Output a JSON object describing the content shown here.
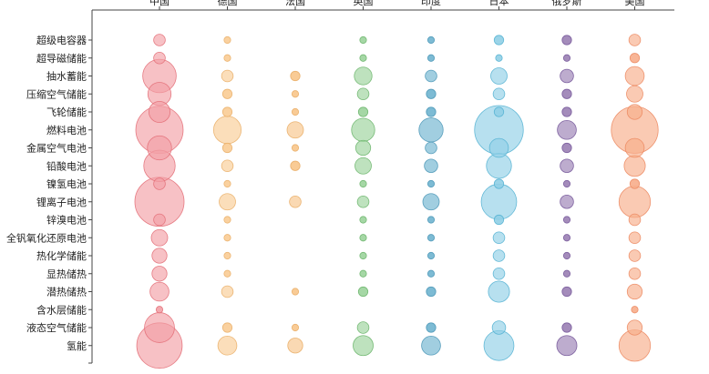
{
  "chart_data": {
    "type": "scatter",
    "countries": [
      "中国",
      "德国",
      "法国",
      "英国",
      "印度",
      "日本",
      "俄罗斯",
      "美国"
    ],
    "technologies": [
      "超级电容器",
      "超导磁储能",
      "抽水蓄能",
      "压缩空气储能",
      "飞轮储能",
      "燃料电池",
      "金属空气电池",
      "铅酸电池",
      "镍氢电池",
      "锂离子电池",
      "锌溴电池",
      "全钒氧化还原电池",
      "热化学储能",
      "显热储热",
      "潜热储热",
      "含水层储能",
      "液态空气储能",
      "氢能"
    ],
    "colors": [
      "#f2a0a6",
      "#f9cc95",
      "#f8c58a",
      "#9bd39b",
      "#6fb4cf",
      "#90cfe6",
      "#9a7fb4",
      "#f7ad8b"
    ],
    "strokes": [
      "#e36f78",
      "#eab06a",
      "#e9ad66",
      "#6bb56b",
      "#4b97b7",
      "#55b3d3",
      "#76589a",
      "#ec8a62"
    ],
    "values": [
      [
        3,
        1,
        0,
        1,
        1,
        2,
        2,
        3
      ],
      [
        3,
        1,
        0,
        1,
        1,
        1,
        1,
        2
      ],
      [
        25,
        3,
        2,
        7,
        3,
        6,
        4,
        8
      ],
      [
        12,
        2,
        1,
        3,
        2,
        3,
        2,
        6
      ],
      [
        10,
        2,
        1,
        2,
        2,
        2,
        2,
        5
      ],
      [
        50,
        17,
        6,
        12,
        13,
        53,
        8,
        49
      ],
      [
        13,
        2,
        1,
        5,
        3,
        8,
        2,
        8
      ],
      [
        22,
        3,
        2,
        6,
        4,
        14,
        4,
        10
      ],
      [
        3,
        1,
        0,
        1,
        1,
        2,
        1,
        2
      ],
      [
        54,
        6,
        3,
        3,
        6,
        28,
        4,
        22
      ],
      [
        3,
        1,
        0,
        1,
        1,
        2,
        1,
        3
      ],
      [
        6,
        1,
        0,
        1,
        1,
        3,
        1,
        3
      ],
      [
        5,
        1,
        0,
        1,
        1,
        3,
        1,
        3
      ],
      [
        5,
        1,
        0,
        1,
        1,
        3,
        1,
        3
      ],
      [
        8,
        3,
        1,
        2,
        2,
        10,
        2,
        5
      ],
      [
        1,
        0,
        0,
        0,
        0,
        0,
        0,
        1
      ],
      [
        20,
        2,
        1,
        3,
        2,
        4,
        2,
        5
      ],
      [
        46,
        8,
        5,
        9,
        8,
        20,
        9,
        22
      ]
    ]
  }
}
